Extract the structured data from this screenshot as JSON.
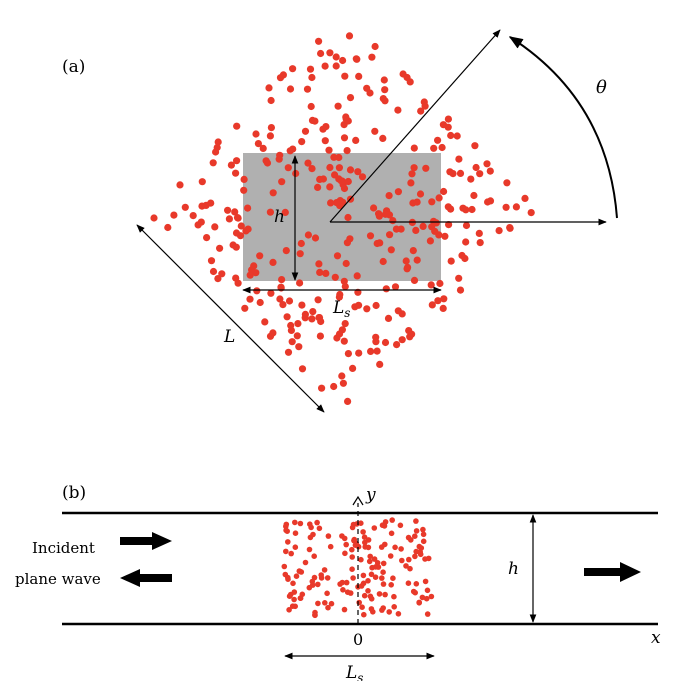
{
  "panel_a": {
    "label": "(a)",
    "h_label": "h",
    "ls_label": "L",
    "ls_sub": "s",
    "l_label": "L",
    "theta_label": "θ"
  },
  "panel_b": {
    "label": "(b)",
    "incident_line1": "Incident",
    "incident_line2": "plane wave",
    "y_label": "y",
    "x_label": "x",
    "zero_label": "0",
    "h_label": "h",
    "ls_label": "L",
    "ls_sub": "s"
  },
  "colors": {
    "scatterer": "#e8392a",
    "obstacle": "#b0b0b0",
    "line": "#000000"
  }
}
